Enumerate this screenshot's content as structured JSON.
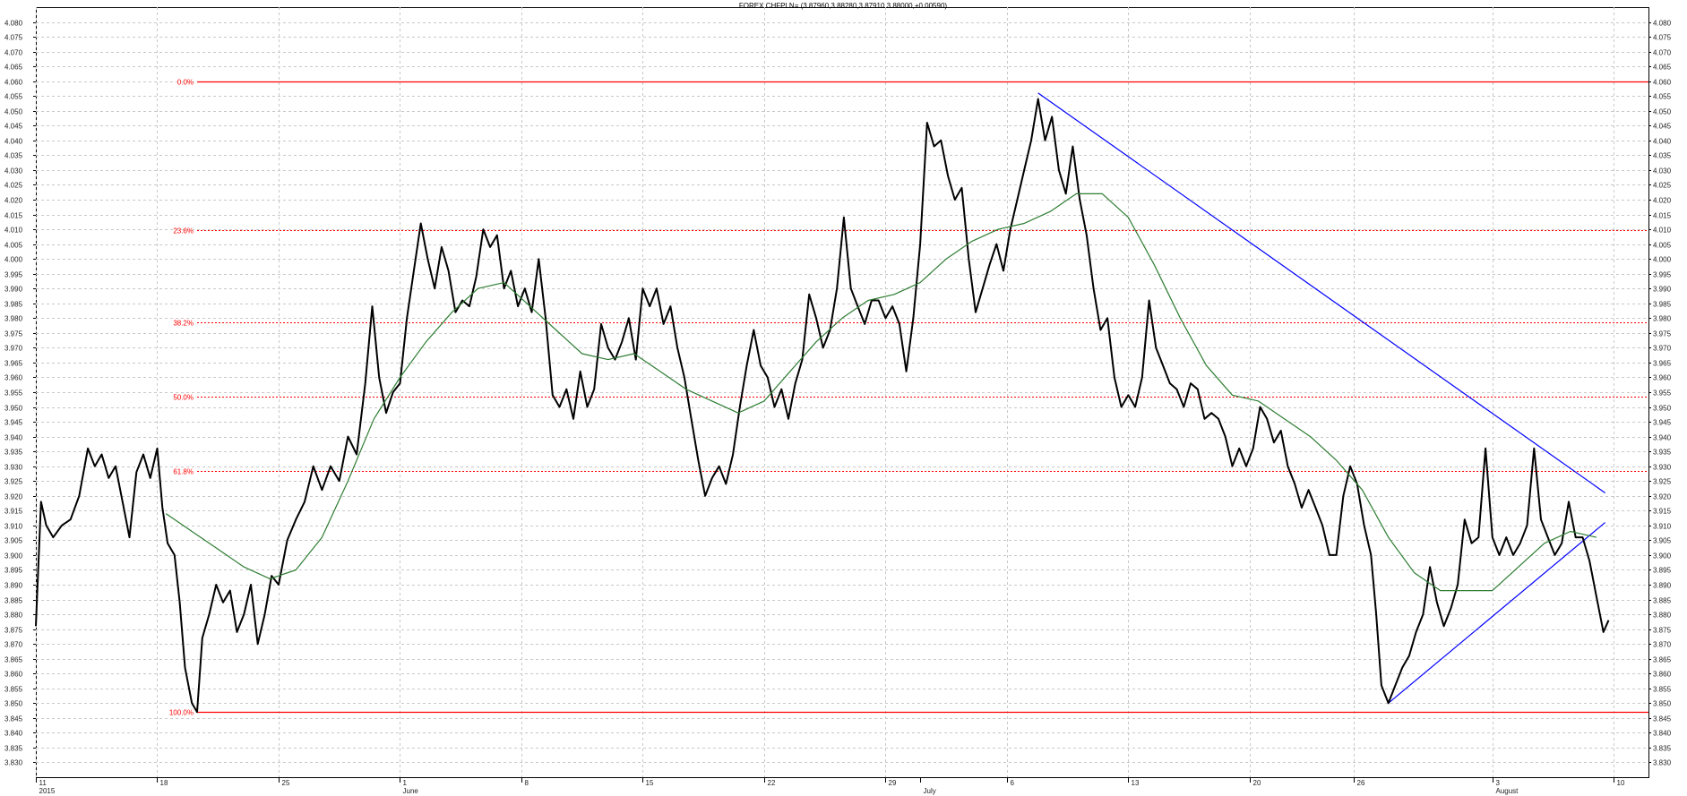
{
  "chart_data": {
    "type": "line",
    "title": "FOREX CHFPLN= (3.87960,3.88280,3.87910,3.88000,+0.00590)",
    "ylim": [
      3.825,
      4.085
    ],
    "y_ticks": [
      "4.080",
      "4.075",
      "4.070",
      "4.065",
      "4.060",
      "4.055",
      "4.050",
      "4.045",
      "4.040",
      "4.035",
      "4.030",
      "4.025",
      "4.020",
      "4.015",
      "4.010",
      "4.005",
      "4.000",
      "3.995",
      "3.990",
      "3.985",
      "3.980",
      "3.975",
      "3.970",
      "3.965",
      "3.960",
      "3.955",
      "3.950",
      "3.945",
      "3.940",
      "3.935",
      "3.930",
      "3.925",
      "3.920",
      "3.915",
      "3.910",
      "3.905",
      "3.900",
      "3.895",
      "3.890",
      "3.885",
      "3.880",
      "3.875",
      "3.870",
      "3.865",
      "3.860",
      "3.855",
      "3.850",
      "3.845",
      "3.840",
      "3.835",
      "3.830"
    ],
    "x_ticks": [
      {
        "label": "11",
        "sub": "2015",
        "day": 0
      },
      {
        "label": "18",
        "day": 7
      },
      {
        "label": "25",
        "day": 14
      },
      {
        "label": "1",
        "sub": "June",
        "day": 21
      },
      {
        "label": "8",
        "day": 28
      },
      {
        "label": "15",
        "day": 35
      },
      {
        "label": "22",
        "day": 42
      },
      {
        "label": "29",
        "day": 49
      },
      {
        "label": "",
        "sub": "July",
        "day": 51
      },
      {
        "label": "6",
        "day": 56
      },
      {
        "label": "13",
        "day": 63
      },
      {
        "label": "20",
        "day": 70
      },
      {
        "label": "26",
        "day": 76
      },
      {
        "label": "3",
        "sub": "August",
        "day": 84
      },
      {
        "label": "10",
        "day": 91
      }
    ],
    "grid": true,
    "fibonacci_levels": [
      {
        "label": "0.0%",
        "value": 4.06
      },
      {
        "label": "23.6%",
        "value": 4.0097
      },
      {
        "label": "38.2%",
        "value": 3.9787
      },
      {
        "label": "50.0%",
        "value": 3.9535
      },
      {
        "label": "61.8%",
        "value": 3.9283
      },
      {
        "label": "100.0%",
        "value": 3.847
      }
    ],
    "series": [
      {
        "style": "price",
        "color": "#000000",
        "points": [
          [
            0,
            3.876
          ],
          [
            0.3,
            3.918
          ],
          [
            0.6,
            3.91
          ],
          [
            1,
            3.906
          ],
          [
            1.5,
            3.91
          ],
          [
            2,
            3.912
          ],
          [
            2.5,
            3.92
          ],
          [
            3,
            3.936
          ],
          [
            3.4,
            3.93
          ],
          [
            3.8,
            3.934
          ],
          [
            4.2,
            3.926
          ],
          [
            4.6,
            3.93
          ],
          [
            5,
            3.918
          ],
          [
            5.4,
            3.906
          ],
          [
            5.8,
            3.928
          ],
          [
            6.2,
            3.934
          ],
          [
            6.6,
            3.926
          ],
          [
            7,
            3.936
          ],
          [
            7.3,
            3.916
          ],
          [
            7.6,
            3.904
          ],
          [
            8,
            3.9
          ],
          [
            8.3,
            3.884
          ],
          [
            8.6,
            3.862
          ],
          [
            9,
            3.85
          ],
          [
            9.3,
            3.847
          ],
          [
            9.6,
            3.872
          ],
          [
            10,
            3.88
          ],
          [
            10.4,
            3.89
          ],
          [
            10.8,
            3.884
          ],
          [
            11.2,
            3.888
          ],
          [
            11.6,
            3.874
          ],
          [
            12,
            3.88
          ],
          [
            12.4,
            3.89
          ],
          [
            12.8,
            3.87
          ],
          [
            13.2,
            3.88
          ],
          [
            13.6,
            3.893
          ],
          [
            14,
            3.89
          ],
          [
            14.5,
            3.905
          ],
          [
            15,
            3.912
          ],
          [
            15.5,
            3.918
          ],
          [
            16,
            3.93
          ],
          [
            16.5,
            3.922
          ],
          [
            17,
            3.93
          ],
          [
            17.5,
            3.925
          ],
          [
            18,
            3.94
          ],
          [
            18.5,
            3.934
          ],
          [
            19,
            3.958
          ],
          [
            19.4,
            3.984
          ],
          [
            19.8,
            3.96
          ],
          [
            20.2,
            3.948
          ],
          [
            20.6,
            3.955
          ],
          [
            21,
            3.958
          ],
          [
            21.4,
            3.98
          ],
          [
            21.8,
            3.996
          ],
          [
            22.2,
            4.012
          ],
          [
            22.6,
            4.0
          ],
          [
            23,
            3.99
          ],
          [
            23.4,
            4.004
          ],
          [
            23.8,
            3.996
          ],
          [
            24.2,
            3.982
          ],
          [
            24.6,
            3.986
          ],
          [
            25,
            3.984
          ],
          [
            25.4,
            3.994
          ],
          [
            25.8,
            4.01
          ],
          [
            26.2,
            4.004
          ],
          [
            26.6,
            4.008
          ],
          [
            27,
            3.99
          ],
          [
            27.4,
            3.996
          ],
          [
            27.8,
            3.984
          ],
          [
            28.2,
            3.99
          ],
          [
            28.6,
            3.982
          ],
          [
            29,
            4.0
          ],
          [
            29.4,
            3.98
          ],
          [
            29.8,
            3.954
          ],
          [
            30.2,
            3.95
          ],
          [
            30.6,
            3.956
          ],
          [
            31,
            3.946
          ],
          [
            31.4,
            3.962
          ],
          [
            31.8,
            3.95
          ],
          [
            32.2,
            3.956
          ],
          [
            32.6,
            3.978
          ],
          [
            33,
            3.97
          ],
          [
            33.4,
            3.966
          ],
          [
            33.8,
            3.972
          ],
          [
            34.2,
            3.98
          ],
          [
            34.6,
            3.966
          ],
          [
            35,
            3.99
          ],
          [
            35.4,
            3.984
          ],
          [
            35.8,
            3.99
          ],
          [
            36.2,
            3.978
          ],
          [
            36.6,
            3.984
          ],
          [
            37,
            3.97
          ],
          [
            37.4,
            3.96
          ],
          [
            37.8,
            3.946
          ],
          [
            38.2,
            3.932
          ],
          [
            38.6,
            3.92
          ],
          [
            39,
            3.926
          ],
          [
            39.4,
            3.93
          ],
          [
            39.8,
            3.924
          ],
          [
            40.2,
            3.934
          ],
          [
            40.6,
            3.95
          ],
          [
            41,
            3.964
          ],
          [
            41.4,
            3.976
          ],
          [
            41.8,
            3.964
          ],
          [
            42.2,
            3.96
          ],
          [
            42.6,
            3.95
          ],
          [
            43,
            3.956
          ],
          [
            43.4,
            3.946
          ],
          [
            43.8,
            3.958
          ],
          [
            44.2,
            3.966
          ],
          [
            44.6,
            3.988
          ],
          [
            45,
            3.98
          ],
          [
            45.4,
            3.97
          ],
          [
            45.8,
            3.976
          ],
          [
            46.2,
            3.99
          ],
          [
            46.6,
            4.014
          ],
          [
            47,
            3.99
          ],
          [
            47.4,
            3.984
          ],
          [
            47.8,
            3.978
          ],
          [
            48.2,
            3.986
          ],
          [
            48.6,
            3.986
          ],
          [
            49,
            3.98
          ],
          [
            49.4,
            3.984
          ],
          [
            49.8,
            3.978
          ],
          [
            50.2,
            3.962
          ],
          [
            50.6,
            3.98
          ],
          [
            51,
            4.005
          ],
          [
            51.4,
            4.046
          ],
          [
            51.8,
            4.038
          ],
          [
            52.2,
            4.04
          ],
          [
            52.6,
            4.028
          ],
          [
            53,
            4.02
          ],
          [
            53.4,
            4.024
          ],
          [
            53.8,
            4.0
          ],
          [
            54.2,
            3.982
          ],
          [
            54.6,
            3.99
          ],
          [
            55,
            3.998
          ],
          [
            55.4,
            4.005
          ],
          [
            55.8,
            3.996
          ],
          [
            56.2,
            4.01
          ],
          [
            56.6,
            4.02
          ],
          [
            57,
            4.03
          ],
          [
            57.4,
            4.04
          ],
          [
            57.8,
            4.054
          ],
          [
            58.2,
            4.04
          ],
          [
            58.6,
            4.048
          ],
          [
            59,
            4.03
          ],
          [
            59.4,
            4.022
          ],
          [
            59.8,
            4.038
          ],
          [
            60.2,
            4.02
          ],
          [
            60.6,
            4.008
          ],
          [
            61,
            3.99
          ],
          [
            61.4,
            3.976
          ],
          [
            61.8,
            3.98
          ],
          [
            62.2,
            3.96
          ],
          [
            62.6,
            3.95
          ],
          [
            63,
            3.954
          ],
          [
            63.4,
            3.95
          ],
          [
            63.8,
            3.96
          ],
          [
            64.2,
            3.986
          ],
          [
            64.6,
            3.97
          ],
          [
            65,
            3.964
          ],
          [
            65.4,
            3.958
          ],
          [
            65.8,
            3.956
          ],
          [
            66.2,
            3.95
          ],
          [
            66.6,
            3.958
          ],
          [
            67,
            3.956
          ],
          [
            67.4,
            3.946
          ],
          [
            67.8,
            3.948
          ],
          [
            68.2,
            3.946
          ],
          [
            68.6,
            3.94
          ],
          [
            69,
            3.93
          ],
          [
            69.4,
            3.936
          ],
          [
            69.8,
            3.93
          ],
          [
            70.2,
            3.936
          ],
          [
            70.6,
            3.95
          ],
          [
            71,
            3.946
          ],
          [
            71.4,
            3.938
          ],
          [
            71.8,
            3.942
          ],
          [
            72.2,
            3.93
          ],
          [
            72.6,
            3.924
          ],
          [
            73,
            3.916
          ],
          [
            73.4,
            3.922
          ],
          [
            73.8,
            3.916
          ],
          [
            74.2,
            3.91
          ],
          [
            74.6,
            3.9
          ],
          [
            75,
            3.9
          ],
          [
            75.4,
            3.92
          ],
          [
            75.8,
            3.93
          ],
          [
            76.2,
            3.924
          ],
          [
            76.6,
            3.91
          ],
          [
            77,
            3.9
          ],
          [
            77.3,
            3.88
          ],
          [
            77.6,
            3.856
          ],
          [
            78,
            3.85
          ],
          [
            78.4,
            3.856
          ],
          [
            78.8,
            3.862
          ],
          [
            79.2,
            3.866
          ],
          [
            79.6,
            3.874
          ],
          [
            80,
            3.88
          ],
          [
            80.4,
            3.896
          ],
          [
            80.8,
            3.884
          ],
          [
            81.2,
            3.876
          ],
          [
            81.6,
            3.882
          ],
          [
            82,
            3.89
          ],
          [
            82.4,
            3.912
          ],
          [
            82.8,
            3.904
          ],
          [
            83.2,
            3.906
          ],
          [
            83.6,
            3.936
          ],
          [
            84,
            3.906
          ],
          [
            84.4,
            3.9
          ],
          [
            84.8,
            3.906
          ],
          [
            85.2,
            3.9
          ],
          [
            85.6,
            3.904
          ],
          [
            86,
            3.91
          ],
          [
            86.4,
            3.936
          ],
          [
            86.8,
            3.912
          ],
          [
            87.2,
            3.906
          ],
          [
            87.6,
            3.9
          ],
          [
            88,
            3.904
          ],
          [
            88.4,
            3.918
          ],
          [
            88.8,
            3.906
          ],
          [
            89.2,
            3.906
          ],
          [
            89.6,
            3.898
          ],
          [
            90,
            3.886
          ],
          [
            90.4,
            3.874
          ],
          [
            90.7,
            3.878
          ]
        ]
      },
      {
        "style": "moving-average",
        "color": "#2e7d32",
        "points": [
          [
            7.5,
            3.914
          ],
          [
            9,
            3.908
          ],
          [
            10.5,
            3.902
          ],
          [
            12,
            3.896
          ],
          [
            13.5,
            3.892
          ],
          [
            15,
            3.895
          ],
          [
            16.5,
            3.906
          ],
          [
            18,
            3.925
          ],
          [
            19.5,
            3.946
          ],
          [
            21,
            3.96
          ],
          [
            22.5,
            3.972
          ],
          [
            24,
            3.982
          ],
          [
            25.5,
            3.99
          ],
          [
            27,
            3.992
          ],
          [
            28.5,
            3.984
          ],
          [
            30,
            3.976
          ],
          [
            31.5,
            3.968
          ],
          [
            33,
            3.966
          ],
          [
            34.5,
            3.968
          ],
          [
            36,
            3.962
          ],
          [
            37.5,
            3.956
          ],
          [
            39,
            3.952
          ],
          [
            40.5,
            3.948
          ],
          [
            42,
            3.952
          ],
          [
            43.5,
            3.962
          ],
          [
            45,
            3.972
          ],
          [
            46.5,
            3.98
          ],
          [
            48,
            3.986
          ],
          [
            49.5,
            3.988
          ],
          [
            51,
            3.992
          ],
          [
            52.5,
            4.0
          ],
          [
            54,
            4.006
          ],
          [
            55.5,
            4.01
          ],
          [
            57,
            4.012
          ],
          [
            58.5,
            4.016
          ],
          [
            60,
            4.022
          ],
          [
            61.5,
            4.022
          ],
          [
            63,
            4.014
          ],
          [
            64.5,
            3.998
          ],
          [
            66,
            3.98
          ],
          [
            67.5,
            3.964
          ],
          [
            69,
            3.954
          ],
          [
            70.5,
            3.952
          ],
          [
            72,
            3.946
          ],
          [
            73.5,
            3.94
          ],
          [
            75,
            3.932
          ],
          [
            76.5,
            3.922
          ],
          [
            78,
            3.906
          ],
          [
            79.5,
            3.894
          ],
          [
            81,
            3.888
          ],
          [
            82.5,
            3.888
          ],
          [
            84,
            3.888
          ],
          [
            85.5,
            3.896
          ],
          [
            87,
            3.904
          ],
          [
            88.5,
            3.908
          ],
          [
            90,
            3.906
          ]
        ]
      }
    ],
    "trendlines": [
      {
        "color": "#0000ff",
        "from": [
          57.8,
          4.056
        ],
        "to": [
          90.5,
          3.921
        ]
      },
      {
        "color": "#0000ff",
        "from": [
          78,
          3.85
        ],
        "to": [
          90.5,
          3.911
        ]
      }
    ]
  }
}
